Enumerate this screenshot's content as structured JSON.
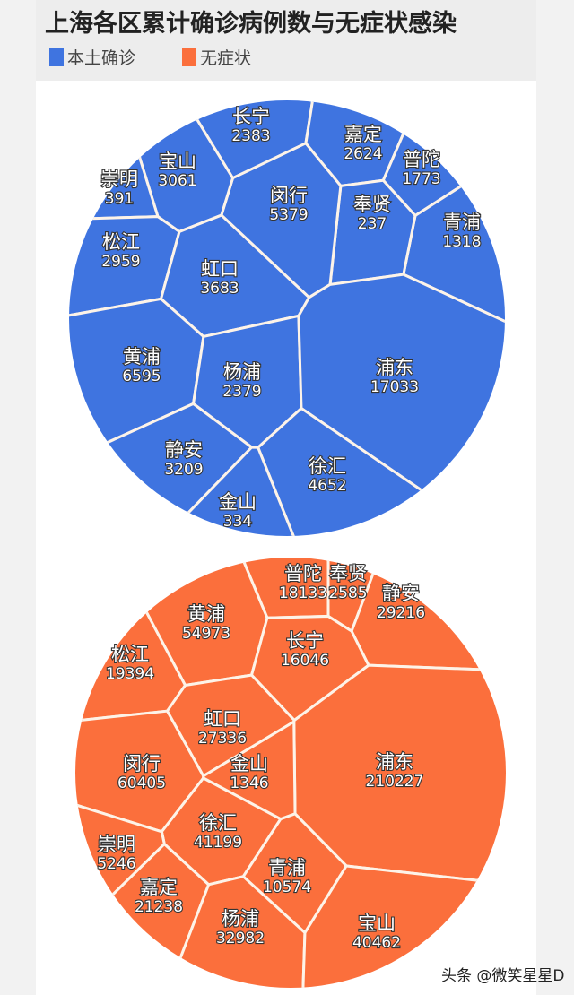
{
  "chart_data": [
    {
      "type": "voronoi-treemap",
      "title": "上海各区累计确诊病例数与无症状感染",
      "series_name": "本土确诊",
      "color": "#3f74e0",
      "cells": [
        {
          "name": "长宁",
          "value": 2383
        },
        {
          "name": "嘉定",
          "value": 2624
        },
        {
          "name": "普陀",
          "value": 1773
        },
        {
          "name": "青浦",
          "value": 1318
        },
        {
          "name": "奉贤",
          "value": 237
        },
        {
          "name": "闵行",
          "value": 5379
        },
        {
          "name": "宝山",
          "value": 3061
        },
        {
          "name": "崇明",
          "value": 391
        },
        {
          "name": "松江",
          "value": 2959
        },
        {
          "name": "虹口",
          "value": 3683
        },
        {
          "name": "黄浦",
          "value": 6595
        },
        {
          "name": "杨浦",
          "value": 2379
        },
        {
          "name": "浦东",
          "value": 17033
        },
        {
          "name": "静安",
          "value": 3209
        },
        {
          "name": "徐汇",
          "value": 4652
        },
        {
          "name": "金山",
          "value": 334
        }
      ]
    },
    {
      "type": "voronoi-treemap",
      "series_name": "无症状",
      "color": "#fb6f3c",
      "cells": [
        {
          "name": "普陀",
          "value": 18133
        },
        {
          "name": "奉贤",
          "value": 2585
        },
        {
          "name": "静安",
          "value": 29216
        },
        {
          "name": "黄浦",
          "value": 54973
        },
        {
          "name": "长宁",
          "value": 16046
        },
        {
          "name": "松江",
          "value": 19394
        },
        {
          "name": "虹口",
          "value": 27336
        },
        {
          "name": "浦东",
          "value": 210227
        },
        {
          "name": "闵行",
          "value": 60405
        },
        {
          "name": "金山",
          "value": 1346
        },
        {
          "name": "徐汇",
          "value": 41199
        },
        {
          "name": "崇明",
          "value": 5246
        },
        {
          "name": "嘉定",
          "value": 21238
        },
        {
          "name": "青浦",
          "value": 10574
        },
        {
          "name": "杨浦",
          "value": 32982
        },
        {
          "name": "宝山",
          "value": 40462
        }
      ]
    }
  ],
  "header": {
    "title": "上海各区累计确诊病例数与无症状感染"
  },
  "legend": [
    {
      "label": "本土确诊",
      "color": "#3f74e0"
    },
    {
      "label": "无症状",
      "color": "#fb6f3c"
    }
  ],
  "watermark": "头条 @微笑星星D"
}
